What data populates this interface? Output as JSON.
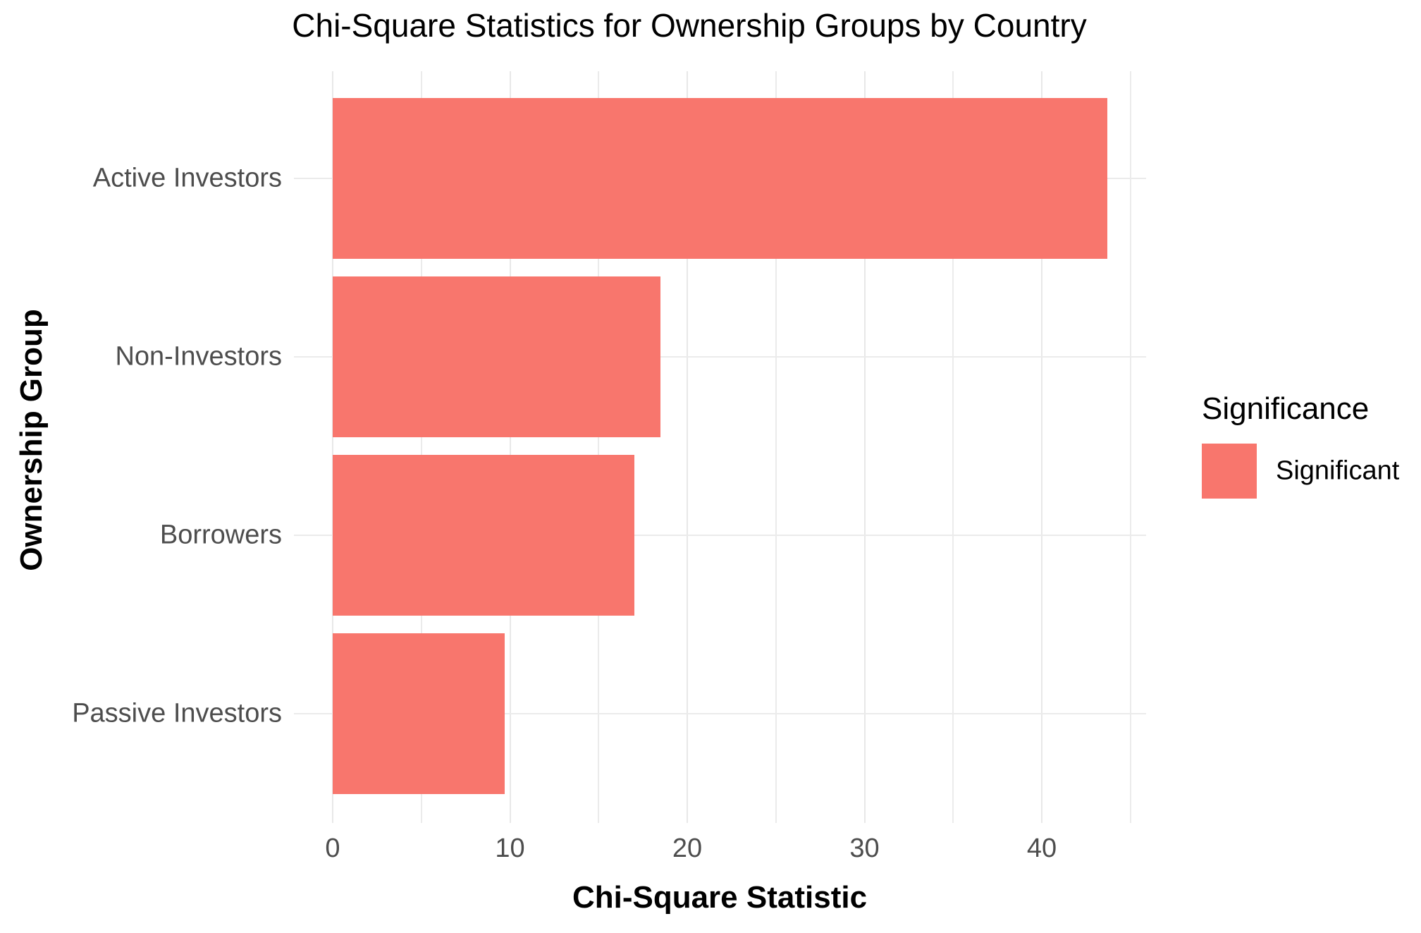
{
  "chart_data": {
    "type": "bar",
    "orientation": "horizontal",
    "title": "Chi-Square Statistics for Ownership Groups by Country",
    "xlabel": "Chi-Square Statistic",
    "ylabel": "Ownership Group",
    "categories": [
      "Active Investors",
      "Non-Investors",
      "Borrowers",
      "Passive Investors"
    ],
    "values": [
      43.7,
      18.5,
      17.0,
      9.7
    ],
    "xticks": [
      0,
      10,
      20,
      30,
      40
    ],
    "minor_xticks": [
      5,
      15,
      25,
      35,
      45
    ],
    "xlim": [
      -2.2,
      45.9
    ],
    "grid": "major-and-minor-x, major-y, color #EBEBEB, white background",
    "legend": {
      "position": "right",
      "title": "Significance",
      "entries": [
        {
          "label": "Significant",
          "color": "#F8766D"
        }
      ]
    },
    "colors": {
      "bar_fill": "#F8766D",
      "axis_text": "#4D4D4D",
      "gridline": "#EBEBEB",
      "title_text": "#000000"
    }
  }
}
